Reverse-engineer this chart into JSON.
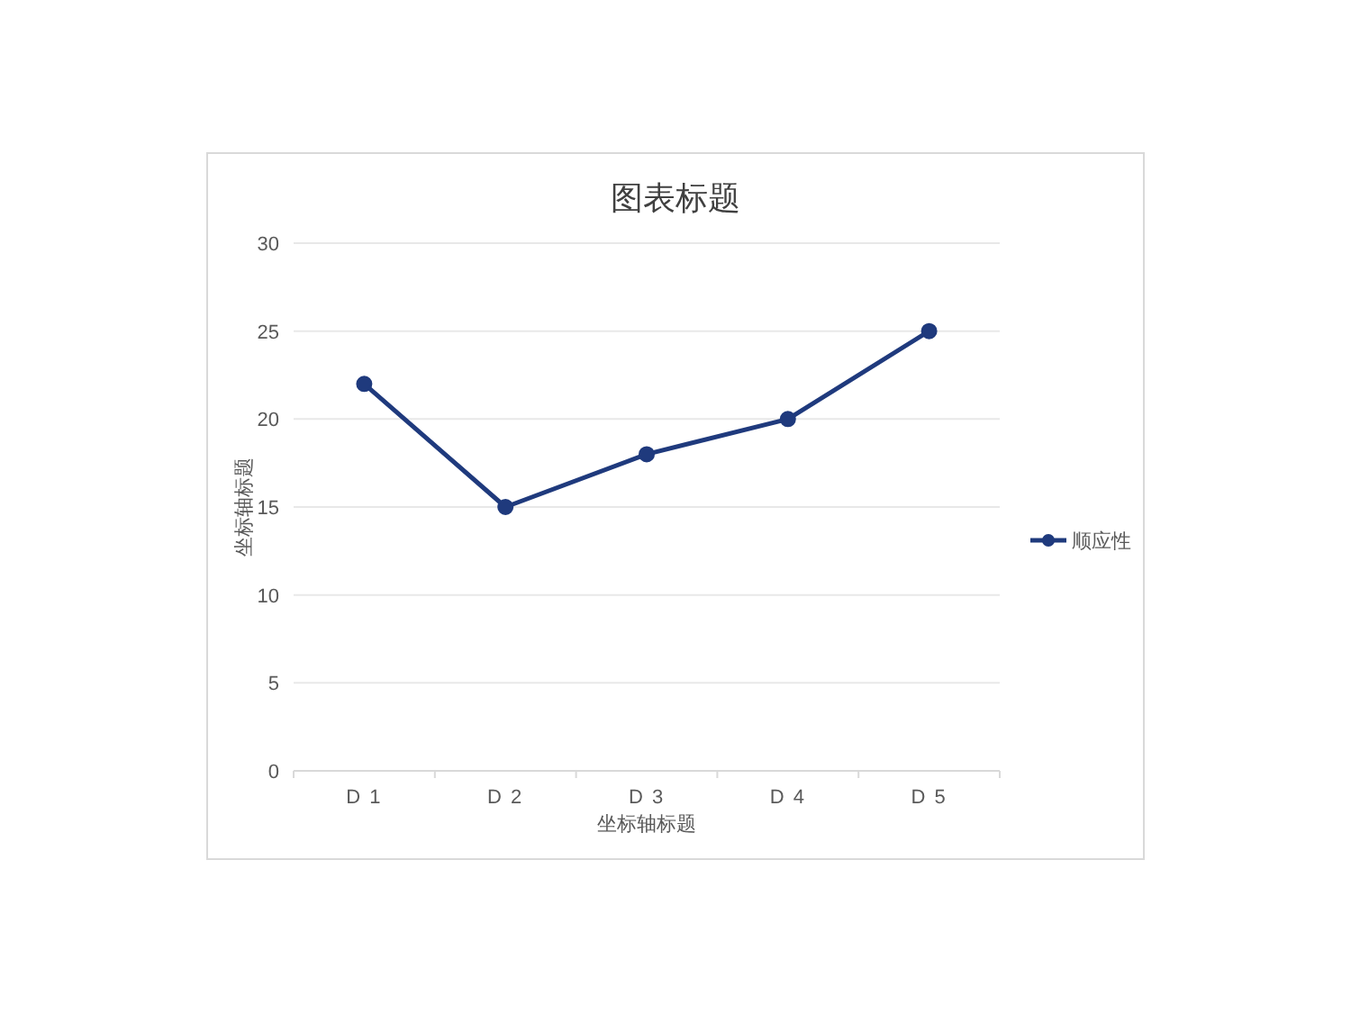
{
  "chart_data": {
    "type": "line",
    "title": "图表标题",
    "xlabel": "坐标轴标题",
    "ylabel": "坐标轴标题",
    "categories": [
      "D 1",
      "D 2",
      "D 3",
      "D 4",
      "D 5"
    ],
    "series": [
      {
        "name": "顺应性",
        "color": "#1f3a7d",
        "values": [
          22,
          15,
          18,
          20,
          25
        ]
      }
    ],
    "ylim": [
      0,
      30
    ],
    "yticks": [
      0,
      5,
      10,
      15,
      20,
      25,
      30
    ],
    "grid": "y",
    "legend": "right",
    "marker": "circle",
    "line_style": "solid"
  }
}
